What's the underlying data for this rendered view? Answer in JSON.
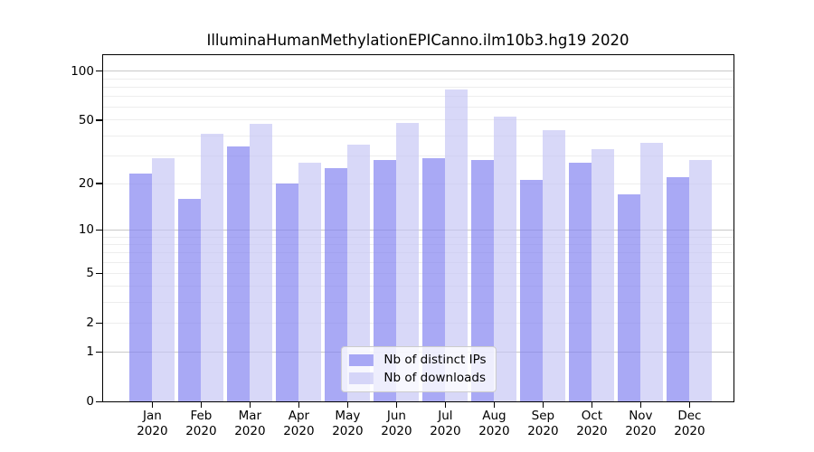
{
  "chart_data": {
    "type": "bar",
    "title": "IlluminaHumanMethylationEPICanno.ilm10b3.hg19 2020",
    "scale_y": "log1p",
    "categories": [
      "Jan",
      "Feb",
      "Mar",
      "Apr",
      "May",
      "Jun",
      "Jul",
      "Aug",
      "Sep",
      "Oct",
      "Nov",
      "Dec"
    ],
    "category_year": "2020",
    "series": [
      {
        "name": "Nb of distinct IPs",
        "fill": "rgba(128,128,240,0.68)",
        "values": [
          23,
          16,
          34,
          20,
          25,
          28,
          29,
          28,
          21,
          27,
          17,
          22
        ]
      },
      {
        "name": "Nb of downloads",
        "fill": "rgba(196,196,244,0.66)",
        "values": [
          29,
          41,
          47,
          27,
          35,
          48,
          77,
          52,
          43,
          33,
          36,
          28
        ]
      }
    ],
    "yticks": [
      0,
      1,
      2,
      5,
      10,
      20,
      50,
      100
    ],
    "ylim": [
      0,
      125
    ],
    "grid": true,
    "gridlines_major": [
      1,
      10,
      100
    ],
    "gridlines_minor": [
      2,
      3,
      4,
      5,
      6,
      7,
      8,
      9,
      20,
      30,
      40,
      50,
      60,
      70,
      80,
      90
    ],
    "legend_position": "lower center inside plot"
  },
  "colors": {
    "bar_distinct_ips": "rgba(128,128,240,0.68)",
    "bar_downloads": "rgba(196,196,244,0.66)",
    "grid_major": "#c9c9c9",
    "grid_minor": "#ededed",
    "axis": "#000000",
    "background": "#ffffff"
  }
}
